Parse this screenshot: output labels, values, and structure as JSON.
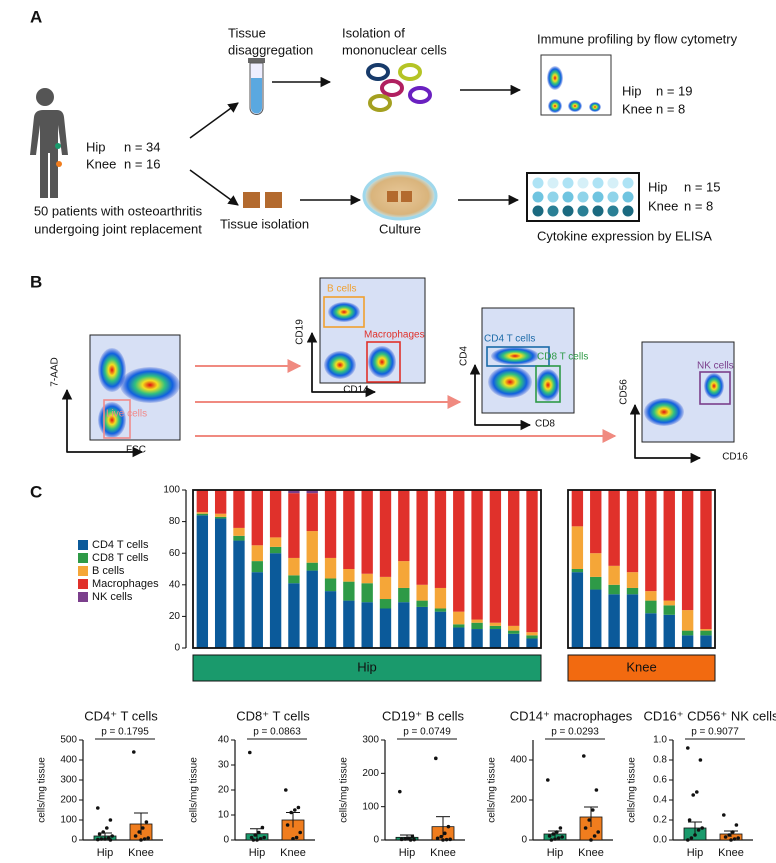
{
  "panel_labels": [
    "A",
    "B",
    "C"
  ],
  "schematic": {
    "patients": {
      "hip": {
        "label": "Hip",
        "n": "n = 34"
      },
      "knee": {
        "label": "Knee",
        "n": "n = 16"
      },
      "caption": [
        "50 patients with osteoarthritis",
        "undergoing joint replacement"
      ]
    },
    "disaggregation": [
      "Tissue",
      "disaggregation"
    ],
    "isolation": [
      "Isolation of",
      "mononuclear cells"
    ],
    "flow": {
      "title": "Immune profiling by flow cytometry",
      "hip": {
        "label": "Hip",
        "n": "n = 19"
      },
      "knee": {
        "label": "Knee",
        "n": "n = 8"
      }
    },
    "tissue_isolation": "Tissue isolation",
    "culture": "Culture",
    "elisa": {
      "hip": {
        "label": "Hip",
        "n": "n = 15"
      },
      "knee": {
        "label": "Knee",
        "n": "n = 8"
      },
      "caption": "Cytokine expression by ELISA"
    }
  },
  "gating": [
    {
      "x_label": "FSC",
      "y_label": "7-AAD",
      "gates": [
        "Live cells"
      ]
    },
    {
      "x_label": "CD14",
      "y_label": "CD19",
      "gates": [
        "B cells",
        "Macrophages"
      ]
    },
    {
      "x_label": "CD8",
      "y_label": "CD4",
      "gates": [
        "CD4 T cells",
        "CD8 T cells"
      ]
    },
    {
      "x_label": "CD16",
      "y_label": "CD56",
      "gates": [
        "NK cells"
      ]
    }
  ],
  "chart_data": [
    {
      "type": "stacked-bar",
      "panels": [
        {
          "label": "Hip",
          "color": "#1a9a6c",
          "categories": [
            null,
            null,
            null,
            null,
            null,
            null,
            null,
            null,
            null,
            null,
            null,
            null,
            null,
            null,
            null,
            null,
            null,
            null,
            null
          ]
        },
        {
          "label": "Knee",
          "color": "#f26a10",
          "categories": [
            null,
            null,
            null,
            null,
            null,
            null,
            null,
            null
          ]
        }
      ],
      "series": [
        {
          "name": "CD4 T cells",
          "color": "#0b5a9a",
          "values": [
            84,
            82,
            68,
            48,
            60,
            41,
            49,
            36,
            30,
            29,
            25,
            29,
            26,
            23,
            13,
            12,
            12,
            9,
            6,
            48,
            37,
            34,
            34,
            22,
            21,
            8,
            8
          ]
        },
        {
          "name": "CD8 T cells",
          "color": "#2e9a47",
          "values": [
            1,
            1,
            3,
            7,
            4,
            5,
            5,
            8,
            12,
            12,
            6,
            9,
            4,
            2,
            2,
            4,
            2,
            2,
            2,
            2,
            8,
            6,
            4,
            8,
            6,
            3,
            3
          ]
        },
        {
          "name": "B cells",
          "color": "#f5a638",
          "values": [
            1,
            2,
            5,
            10,
            6,
            11,
            20,
            13,
            8,
            6,
            14,
            17,
            10,
            13,
            8,
            2,
            2,
            3,
            2,
            27,
            15,
            12,
            10,
            6,
            3,
            13,
            1
          ]
        },
        {
          "name": "Macrophages",
          "color": "#e0312b",
          "values": [
            14,
            15,
            24,
            35,
            30,
            41,
            24,
            43,
            50,
            53,
            55,
            45,
            60,
            62,
            77,
            82,
            84,
            86,
            90,
            23,
            40,
            48,
            52,
            64,
            70,
            76,
            88
          ]
        },
        {
          "name": "NK cells",
          "color": "#7b3f8c",
          "values": [
            0,
            0,
            0,
            0,
            0,
            2,
            2,
            0,
            0,
            0,
            0,
            0,
            0,
            0,
            0,
            0,
            0,
            0,
            0,
            0,
            0,
            0,
            0,
            0,
            0,
            0,
            0
          ]
        }
      ],
      "ylim": [
        0,
        100
      ],
      "yticks": [
        0,
        20,
        40,
        60,
        80,
        100
      ]
    },
    {
      "type": "bar",
      "title": "CD4⁺ T cells",
      "annotation": "p = 0.1795",
      "y_label": "cells/mg tissue",
      "categories": [
        "Hip",
        "Knee"
      ],
      "values": [
        20,
        80
      ],
      "errors": [
        15,
        55
      ],
      "colors": [
        "#1a9a6c",
        "#f07d1e"
      ],
      "points": [
        [
          160,
          100,
          60,
          40,
          30,
          20,
          10,
          5,
          5,
          2,
          0
        ],
        [
          440,
          90,
          60,
          40,
          20,
          10,
          5,
          0
        ]
      ],
      "ylim": [
        0,
        500
      ],
      "yticks": [
        0,
        100,
        200,
        300,
        400,
        500
      ]
    },
    {
      "type": "bar",
      "title": "CD8⁺ T cells",
      "annotation": "p = 0.0863",
      "y_label": "cells/mg tissue",
      "categories": [
        "Hip",
        "Knee"
      ],
      "values": [
        2.5,
        8
      ],
      "errors": [
        2,
        3
      ],
      "colors": [
        "#1a9a6c",
        "#f07d1e"
      ],
      "points": [
        [
          35,
          5,
          3,
          2,
          1,
          1,
          0.5,
          0,
          0
        ],
        [
          20,
          13,
          12,
          11,
          6,
          3,
          1,
          0.5
        ]
      ],
      "ylim": [
        0,
        40
      ],
      "yticks": [
        0,
        10,
        20,
        30,
        40
      ]
    },
    {
      "type": "bar",
      "title": "CD19⁺ B cells",
      "annotation": "p = 0.0749",
      "y_label": "cells/mg tissue",
      "categories": [
        "Hip",
        "Knee"
      ],
      "values": [
        8,
        40
      ],
      "errors": [
        7,
        30
      ],
      "colors": [
        "#1a9a6c",
        "#f07d1e"
      ],
      "points": [
        [
          145,
          10,
          5,
          3,
          2,
          1,
          0
        ],
        [
          245,
          40,
          20,
          10,
          5,
          2,
          1,
          0
        ]
      ],
      "ylim": [
        0,
        300
      ],
      "yticks": [
        0,
        100,
        200,
        300
      ]
    },
    {
      "type": "bar",
      "title": "CD14⁺ macrophages",
      "annotation": "p = 0.0293",
      "y_label": "cells/mg tissue",
      "categories": [
        "Hip",
        "Knee"
      ],
      "values": [
        30,
        115
      ],
      "errors": [
        15,
        50
      ],
      "colors": [
        "#1a9a6c",
        "#f07d1e"
      ],
      "points": [
        [
          300,
          60,
          40,
          30,
          20,
          15,
          10,
          5,
          0
        ],
        [
          420,
          250,
          150,
          100,
          60,
          40,
          20,
          0
        ]
      ],
      "ylim": [
        0,
        500
      ],
      "yticks": [
        0,
        200,
        400
      ]
    },
    {
      "type": "bar",
      "title": "CD16⁺ CD56⁺ NK cells",
      "annotation": "p = 0.9077",
      "y_label": "cells/mg tissue",
      "categories": [
        "Hip",
        "Knee"
      ],
      "values": [
        0.12,
        0.06
      ],
      "errors": [
        0.06,
        0.03
      ],
      "colors": [
        "#1a9a6c",
        "#f07d1e"
      ],
      "points": [
        [
          0.92,
          0.8,
          0.48,
          0.45,
          0.2,
          0.12,
          0.1,
          0.05,
          0.02,
          0
        ],
        [
          0.25,
          0.15,
          0.08,
          0.05,
          0.03,
          0.02,
          0.01,
          0
        ]
      ],
      "ylim": [
        0,
        1.0
      ],
      "yticks": [
        {
          "value": 0,
          "label": "0.0"
        },
        0.2,
        0.4,
        0.6,
        0.8,
        {
          "value": 1.0,
          "label": "1.0"
        }
      ]
    }
  ]
}
